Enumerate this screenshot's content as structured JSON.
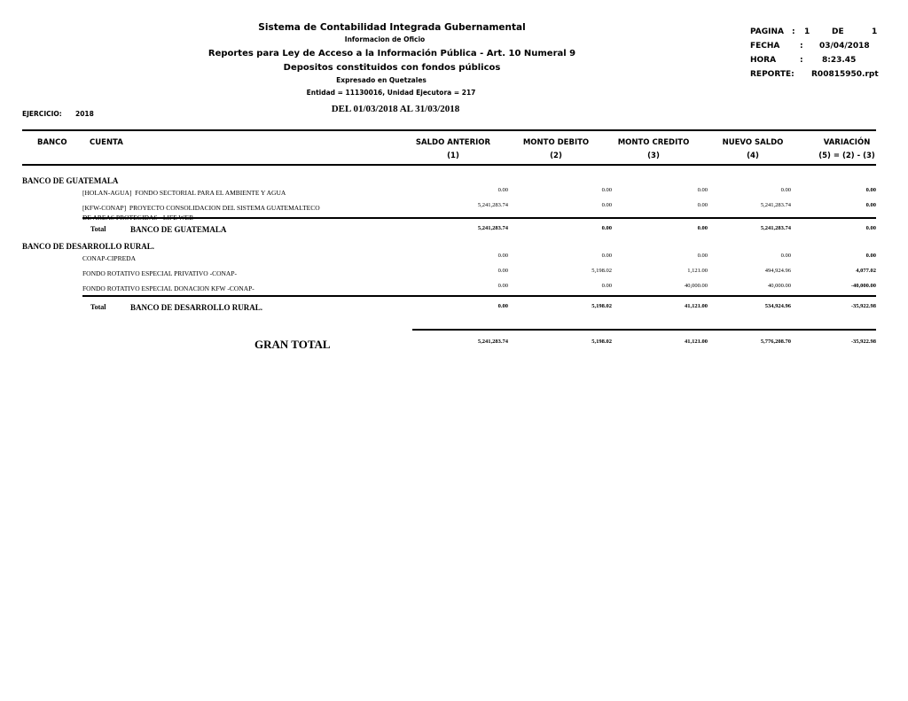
{
  "header": {
    "title": "Sistema de Contabilidad Integrada Gubernamental",
    "subtitle": "Informacion de Oficio",
    "report_title": "Reportes para Ley de Acceso a la Información Pública - Art. 10 Numeral 9",
    "report_subtitle": "Depositos constituidos con fondos públicos",
    "currency": "Expresado en Quetzales",
    "entity": "Entidad = 11130016, Unidad Ejecutora = 217",
    "period": "DEL 01/03/2018 AL 31/03/2018",
    "ejercicio_label": "EJERCICIO:",
    "ejercicio": "2018"
  },
  "meta": {
    "pagina_label": "PAGINA",
    "colon": ":",
    "pagina": "1",
    "de_label": "DE",
    "de": "1",
    "fecha_label": "FECHA",
    "fecha": "03/04/2018",
    "hora_label": "HORA",
    "hora": "8:23.45",
    "reporte_label": "REPORTE:",
    "reporte": "R00815950.rpt"
  },
  "table": {
    "banco_header": "BANCO",
    "cuenta_header": "CUENTA",
    "columns": [
      {
        "title": "SALDO ANTERIOR",
        "sub": "(1)"
      },
      {
        "title": "MONTO DEBITO",
        "sub": "(2)"
      },
      {
        "title": "MONTO CREDITO",
        "sub": "(3)"
      },
      {
        "title": "NUEVO SALDO",
        "sub": "(4)"
      },
      {
        "title": "VARIACIÓN",
        "sub": "(5) = (2) - (3)"
      }
    ],
    "total_label": "Total",
    "groups": [
      {
        "name": "BANCO DE GUATEMALA",
        "rows": [
          {
            "cuenta": "[HOLAN-AGUA]  FONDO SECTORIAL PARA EL AMBIENTE Y AGUA",
            "values": [
              "0.00",
              "0.00",
              "0.00",
              "0.00",
              "0.00"
            ]
          },
          {
            "cuenta": "[KFW-CONAP]  PROYECTO CONSOLIDACION DEL SISTEMA GUATEMALTECO\nDE AREAS PROTEGIDAS - LIFE WEB",
            "values": [
              "5,241,283.74",
              "0.00",
              "0.00",
              "5,241,283.74",
              "0.00"
            ]
          }
        ],
        "total": [
          "5,241,283.74",
          "0.00",
          "0.00",
          "5,241,283.74",
          "0.00"
        ]
      },
      {
        "name": "BANCO DE DESARROLLO RURAL.",
        "rows": [
          {
            "cuenta": "CONAP-CIPREDA",
            "values": [
              "0.00",
              "0.00",
              "0.00",
              "0.00",
              "0.00"
            ]
          },
          {
            "cuenta": "FONDO ROTATIVO ESPECIAL PRIVATIVO -CONAP-",
            "values": [
              "0.00",
              "5,198.02",
              "1,121.00",
              "494,924.96",
              "4,077.02"
            ]
          },
          {
            "cuenta": "FONDO ROTATIVO ESPECIAL DONACION KFW -CONAP-",
            "values": [
              "0.00",
              "0.00",
              "40,000.00",
              "40,000.00",
              "-40,000.00"
            ]
          }
        ],
        "total": [
          "0.00",
          "5,198.02",
          "41,121.00",
          "534,924.96",
          "-35,922.98"
        ]
      }
    ],
    "gran_total_label": "GRAN TOTAL",
    "gran_total": [
      "5,241,283.74",
      "5,198.02",
      "41,121.00",
      "5,776,208.70",
      "-35,922.98"
    ]
  }
}
